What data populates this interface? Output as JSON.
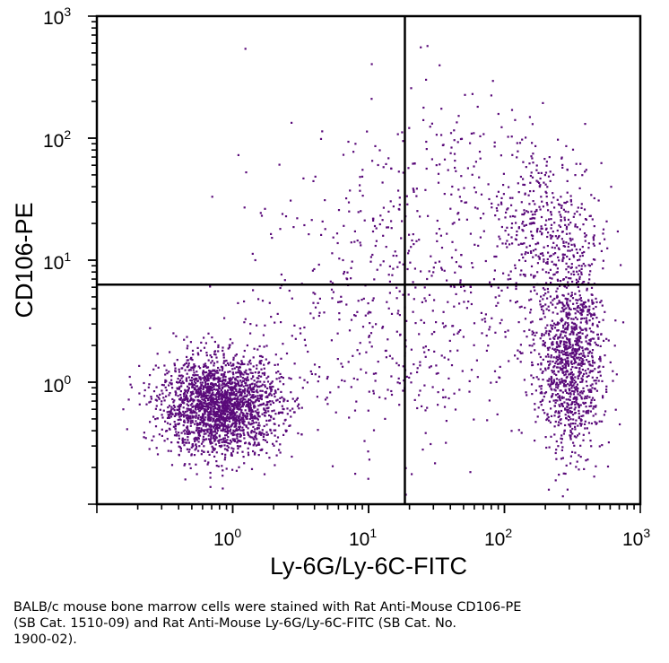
{
  "chart_data": {
    "type": "scatter",
    "title": "",
    "xlabel": "Ly-6G/Ly-6C-FITC",
    "ylabel": "CD106-PE",
    "x_scale": "log",
    "y_scale": "log",
    "xlim": [
      0.1,
      1000
    ],
    "ylim": [
      0.1,
      1000
    ],
    "x_ticks": [
      {
        "base": "10",
        "exp": "0"
      },
      {
        "base": "10",
        "exp": "1"
      },
      {
        "base": "10",
        "exp": "2"
      },
      {
        "base": "10",
        "exp": "3"
      }
    ],
    "y_ticks": [
      {
        "base": "10",
        "exp": "0"
      },
      {
        "base": "10",
        "exp": "1"
      },
      {
        "base": "10",
        "exp": "2"
      },
      {
        "base": "10",
        "exp": "3"
      }
    ],
    "quadrant_gates": {
      "x": 18.5,
      "y": 6.3
    },
    "point_color": "#5a0a7a",
    "populations": [
      {
        "name": "",
        "center": [
          0.8,
          0.65
        ],
        "spread": [
          0.22,
          0.2
        ],
        "count": 2200
      },
      {
        "name": "",
        "center": [
          300,
          1.5
        ],
        "spread": [
          0.12,
          0.38
        ],
        "count": 1100
      },
      {
        "name": "",
        "center": [
          200,
          18
        ],
        "spread": [
          0.2,
          0.35
        ],
        "count": 420
      },
      {
        "name": "",
        "center": [
          15,
          4
        ],
        "spread": [
          0.55,
          0.6
        ],
        "count": 550
      },
      {
        "name": "",
        "center": [
          40,
          60
        ],
        "spread": [
          0.4,
          0.4
        ],
        "count": 160
      }
    ]
  },
  "caption": {
    "line1": "BALB/c mouse bone marrow cells were stained with Rat Anti-Mouse CD106-PE",
    "line2": "(SB Cat. 1510-09) and Rat Anti-Mouse Ly-6G/Ly-6C-FITC (SB Cat. No.",
    "line3": "1900-02)."
  }
}
